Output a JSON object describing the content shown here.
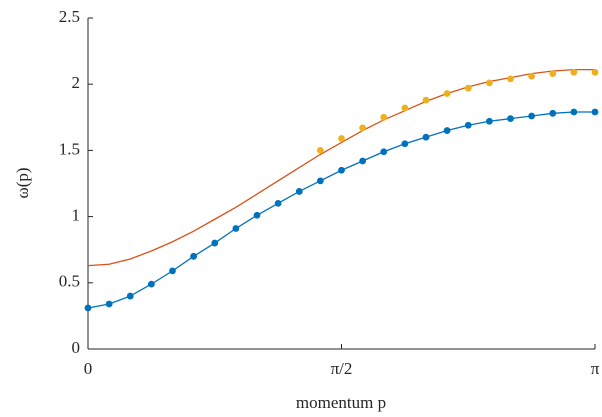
{
  "chart_data": {
    "type": "line",
    "xlabel": "momentum p",
    "ylabel": "ω(p)",
    "x": [
      0,
      0.1309,
      0.2618,
      0.3927,
      0.5236,
      0.6545,
      0.7854,
      0.9163,
      1.0472,
      1.1781,
      1.309,
      1.4399,
      1.5708,
      1.7017,
      1.8326,
      1.9635,
      2.0944,
      2.2253,
      2.3562,
      2.4871,
      2.618,
      2.7489,
      2.8798,
      3.0107,
      3.1416
    ],
    "series": [
      {
        "color": "#d95319",
        "style": "line",
        "values": [
          0.63,
          0.64,
          0.68,
          0.74,
          0.81,
          0.89,
          0.98,
          1.07,
          1.17,
          1.27,
          1.37,
          1.47,
          1.56,
          1.65,
          1.73,
          1.8,
          1.87,
          1.93,
          1.98,
          2.02,
          2.05,
          2.08,
          2.1,
          2.11,
          2.11
        ]
      },
      {
        "color": "#0072bd",
        "style": "line+markers",
        "values": [
          0.31,
          0.34,
          0.4,
          0.49,
          0.59,
          0.7,
          0.8,
          0.91,
          1.01,
          1.1,
          1.19,
          1.27,
          1.35,
          1.42,
          1.49,
          1.55,
          1.6,
          1.65,
          1.69,
          1.72,
          1.74,
          1.76,
          1.78,
          1.79,
          1.79
        ]
      },
      {
        "color": "#edb120",
        "style": "markers",
        "values": [
          null,
          null,
          null,
          null,
          null,
          null,
          null,
          null,
          null,
          null,
          null,
          1.5,
          1.59,
          1.67,
          1.75,
          1.82,
          1.88,
          1.93,
          1.97,
          2.01,
          2.04,
          2.06,
          2.08,
          2.09,
          2.09
        ]
      }
    ],
    "xlim": [
      0,
      3.1416
    ],
    "xticks": [
      0,
      {
        "value": 1.5708,
        "label": "π/2"
      },
      {
        "value": 3.1416,
        "label": "π"
      }
    ],
    "ylim": [
      0,
      2.5
    ],
    "yticks": [
      0,
      0.5,
      1,
      1.5,
      2,
      2.5
    ],
    "grid": false
  }
}
